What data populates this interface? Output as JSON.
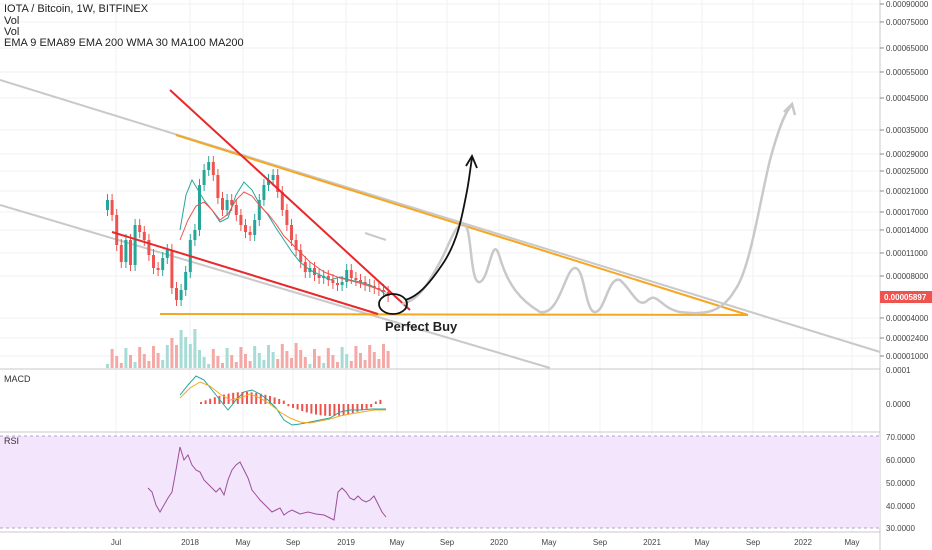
{
  "header": {
    "symbol": "IOTA / Bitcoin, 1W, BITFINEX",
    "vol1": "Vol",
    "vol2": "Vol",
    "indicators": "EMA 9 EMA89 EMA 200 WMA 30 MA100 MA200"
  },
  "price_axis": {
    "labels": [
      "0.00090000",
      "0.00075000",
      "0.00065000",
      "0.00055000",
      "0.00045000",
      "0.00035000",
      "0.00029000",
      "0.00025000",
      "0.00021000",
      "0.00017000",
      "0.00014000",
      "0.00011000",
      "0.00008000",
      "0.00004000",
      "0.00002400",
      "0.00001000"
    ],
    "current_price": "0.00005897"
  },
  "macd": {
    "title": "MACD",
    "axis_labels": [
      "0.0001",
      "0.0000"
    ]
  },
  "rsi": {
    "title": "RSI",
    "axis_labels": [
      "70.0000",
      "60.0000",
      "50.0000",
      "40.0000",
      "30.0000"
    ]
  },
  "time_axis": {
    "labels": [
      "Jul",
      "2018",
      "May",
      "Sep",
      "2019",
      "May",
      "Sep",
      "2020",
      "May",
      "Sep",
      "2021",
      "May",
      "Sep",
      "2022",
      "May"
    ]
  },
  "annotation": {
    "text": "Perfect Buy"
  },
  "colors": {
    "up": "#26a69a",
    "down": "#ef5350",
    "orange": "#f5a623",
    "red_line": "#e8282a",
    "price_badge": "#ef5350",
    "rsi_bg": "#f3e5fb",
    "rsi_line": "#9c4f9a"
  }
}
